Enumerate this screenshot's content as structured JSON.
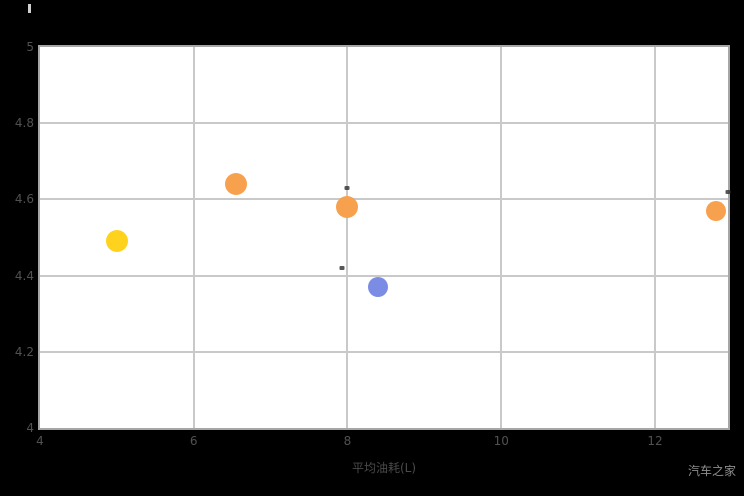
{
  "watermark": "汽车之家",
  "chart_data": {
    "type": "scatter",
    "title": "",
    "xlabel": "平均油耗(L)",
    "ylabel": "",
    "xlim": [
      4,
      12.95
    ],
    "ylim": [
      4,
      5
    ],
    "x_ticks": [
      4,
      6,
      8,
      10,
      12
    ],
    "y_ticks": [
      5,
      4.8,
      4.6,
      4.4,
      4.2,
      4
    ],
    "grid": true,
    "legend": false,
    "points": [
      {
        "x": 5.0,
        "y": 4.49,
        "r": 11,
        "color": "#FFD21E"
      },
      {
        "x": 6.55,
        "y": 4.64,
        "r": 11,
        "color": "#F7A14E"
      },
      {
        "x": 8.0,
        "y": 4.58,
        "r": 11,
        "color": "#F7A14E"
      },
      {
        "x": 8.4,
        "y": 4.37,
        "r": 10,
        "color": "#7B8CE4"
      },
      {
        "x": 12.8,
        "y": 4.57,
        "r": 10,
        "color": "#F7A14E"
      }
    ],
    "annotations": [
      {
        "x": 8.0,
        "y": 4.63
      },
      {
        "x": 7.93,
        "y": 4.42
      },
      {
        "x": 12.95,
        "y": 4.62
      }
    ]
  }
}
